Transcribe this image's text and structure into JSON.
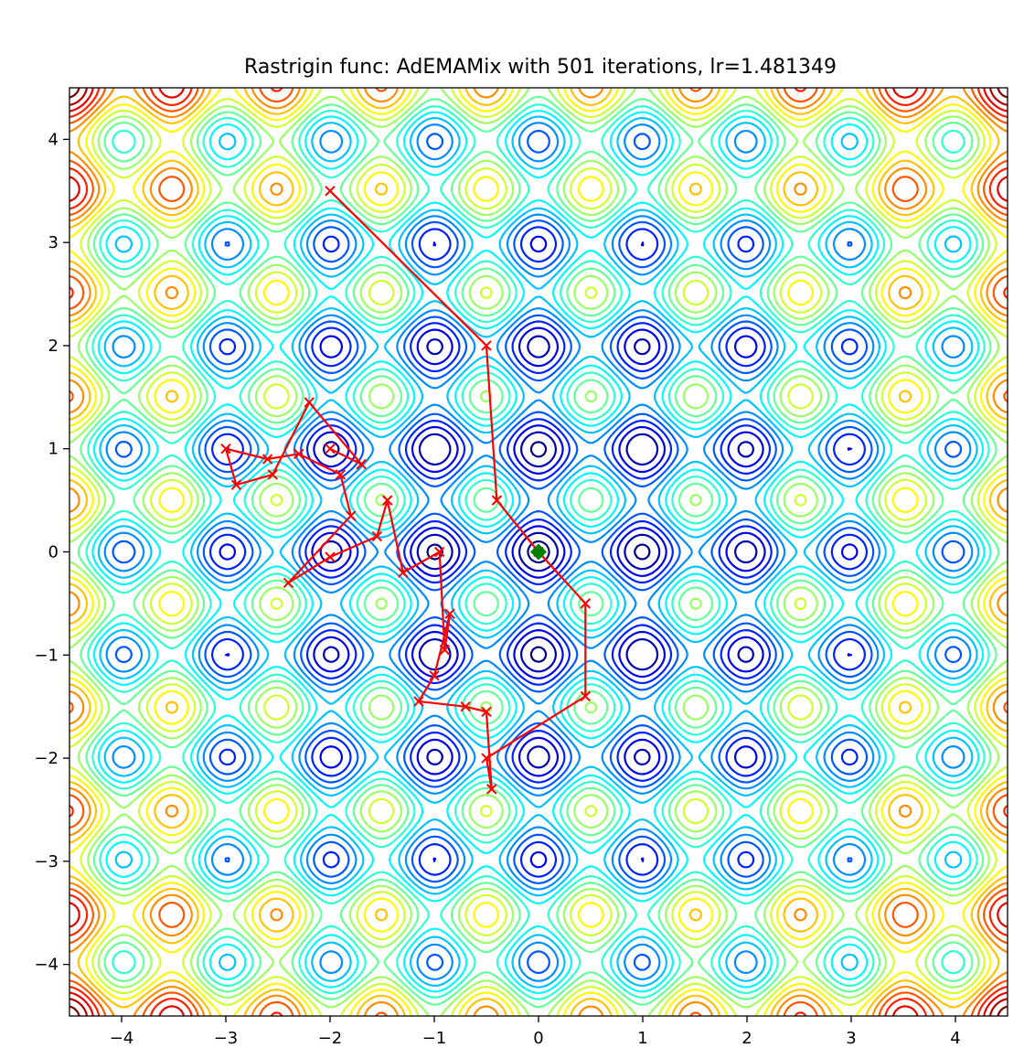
{
  "chart_data": {
    "type": "contour",
    "title": "Rastrigin func: AdEMAMix with 501 iterations, lr=1.481349",
    "xlabel": "",
    "ylabel": "",
    "xlim": [
      -4.5,
      4.5
    ],
    "ylim": [
      -4.5,
      4.5
    ],
    "x_ticks": [
      {
        "value": -4,
        "label": "−4"
      },
      {
        "value": -3,
        "label": "−3"
      },
      {
        "value": -2,
        "label": "−2"
      },
      {
        "value": -1,
        "label": "−1"
      },
      {
        "value": 0,
        "label": "0"
      },
      {
        "value": 1,
        "label": "1"
      },
      {
        "value": 2,
        "label": "2"
      },
      {
        "value": 3,
        "label": "3"
      },
      {
        "value": 4,
        "label": "4"
      }
    ],
    "y_ticks": [
      {
        "value": 4,
        "label": "4"
      },
      {
        "value": 3,
        "label": "3"
      },
      {
        "value": 2,
        "label": "2"
      },
      {
        "value": 1,
        "label": "1"
      },
      {
        "value": 0,
        "label": "0"
      },
      {
        "value": -1,
        "label": "−1"
      },
      {
        "value": -2,
        "label": "−2"
      },
      {
        "value": -3,
        "label": "−3"
      },
      {
        "value": -4,
        "label": "−4"
      }
    ],
    "grid": false,
    "colormap": "jet",
    "global_minimum": {
      "x": 0,
      "y": 0,
      "marker": "diamond",
      "color": "#008000"
    },
    "path": {
      "color": "#ff0000",
      "marker": "x",
      "points": [
        [
          -2.0,
          3.5
        ],
        [
          -0.5,
          2.0
        ],
        [
          -0.4,
          0.5
        ],
        [
          0.0,
          0.0
        ],
        [
          0.45,
          -0.5
        ],
        [
          0.45,
          -1.4
        ],
        [
          -0.5,
          -2.0
        ],
        [
          -0.45,
          -2.3
        ],
        [
          -0.5,
          -1.55
        ],
        [
          -0.7,
          -1.5
        ],
        [
          -1.15,
          -1.45
        ],
        [
          -1.0,
          -1.2
        ],
        [
          -0.85,
          -0.6
        ],
        [
          -0.9,
          -0.95
        ],
        [
          -0.95,
          0.0
        ],
        [
          -1.3,
          -0.2
        ],
        [
          -1.45,
          0.5
        ],
        [
          -1.55,
          0.15
        ],
        [
          -2.0,
          -0.05
        ],
        [
          -2.4,
          -0.3
        ],
        [
          -1.8,
          0.35
        ],
        [
          -1.9,
          0.75
        ],
        [
          -2.3,
          0.95
        ],
        [
          -2.6,
          0.9
        ],
        [
          -3.0,
          1.0
        ],
        [
          -2.9,
          0.65
        ],
        [
          -2.55,
          0.75
        ],
        [
          -2.2,
          1.45
        ],
        [
          -1.7,
          0.85
        ],
        [
          -2.0,
          1.0
        ]
      ]
    }
  }
}
